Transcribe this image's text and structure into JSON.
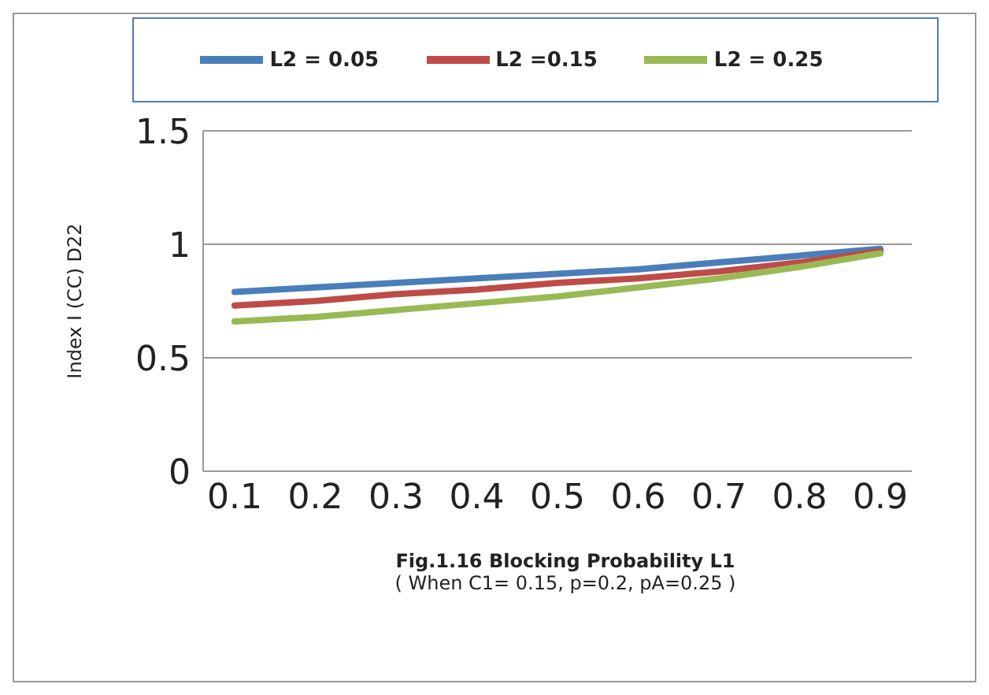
{
  "chart_data": {
    "type": "line",
    "xlabel": "Fig.1.16  Blocking Probability  L1",
    "ylabel": "Index I (CC) D22",
    "annotations": [
      "( When  C1= 0.15, p=0.2, pA=0.25 )"
    ],
    "categories": [
      "0.1",
      "0.2",
      "0.3",
      "0.4",
      "0.5",
      "0.6",
      "0.7",
      "0.8",
      "0.9"
    ],
    "series": [
      {
        "name": "L2 = 0.05",
        "color": "#4a7ebb",
        "values": [
          0.79,
          0.81,
          0.83,
          0.85,
          0.87,
          0.89,
          0.92,
          0.95,
          0.98
        ]
      },
      {
        "name": "L2 =0.15",
        "color": "#be4b48",
        "values": [
          0.73,
          0.75,
          0.78,
          0.8,
          0.83,
          0.85,
          0.88,
          0.92,
          0.97
        ]
      },
      {
        "name": "L2 = 0.25",
        "color": "#98b954",
        "values": [
          0.66,
          0.68,
          0.71,
          0.74,
          0.77,
          0.81,
          0.85,
          0.9,
          0.96
        ]
      }
    ],
    "ylim": [
      0,
      1.5
    ],
    "yticks": [
      0,
      0.5,
      1,
      1.5
    ],
    "grid": "y",
    "legend": "top",
    "marker": "none",
    "line_style": "solid"
  }
}
